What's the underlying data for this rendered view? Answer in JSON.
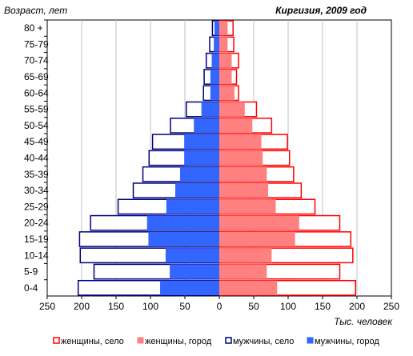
{
  "chart_data": {
    "type": "bar",
    "subtype": "population-pyramid",
    "title": "Киргизия, 2009 год",
    "ylabel": "Возраст, лет",
    "xlabel": "Тыс. человек",
    "categories": [
      "0-4",
      "5-9",
      "10-14",
      "15-19",
      "20-24",
      "25-29",
      "30-34",
      "35-39",
      "40-44",
      "45-49",
      "50-54",
      "55-59",
      "60-64",
      "65-69",
      "70-74",
      "75-79",
      "80 +"
    ],
    "x_ticks": [
      "250",
      "200",
      "150",
      "100",
      "50",
      "0",
      "50",
      "100",
      "150",
      "200",
      "250"
    ],
    "xlim": [
      -250,
      250
    ],
    "grid": true,
    "legend_position": "bottom",
    "series": [
      {
        "name": "женщины, село",
        "side": "right",
        "style": "outline",
        "color": "#ff0000",
        "values": [
          198,
          175,
          194,
          191,
          175,
          139,
          119,
          108,
          102,
          99,
          76,
          54,
          28,
          25,
          28,
          21,
          20
        ]
      },
      {
        "name": "женщины, город",
        "side": "right",
        "style": "filled",
        "color": "#ff8080",
        "values": [
          84,
          69,
          76,
          110,
          116,
          82,
          71,
          69,
          63,
          61,
          48,
          37,
          22,
          18,
          18,
          12,
          12
        ]
      },
      {
        "name": "мужчины, село",
        "side": "left",
        "style": "outline",
        "color": "#000080",
        "values": [
          205,
          182,
          202,
          203,
          187,
          147,
          125,
          111,
          102,
          97,
          71,
          48,
          23,
          22,
          19,
          14,
          10
        ]
      },
      {
        "name": "мужчины, город",
        "side": "left",
        "style": "filled",
        "color": "#3366ff",
        "values": [
          86,
          72,
          78,
          103,
          105,
          77,
          64,
          57,
          51,
          51,
          37,
          26,
          13,
          13,
          11,
          8,
          7
        ]
      }
    ]
  }
}
